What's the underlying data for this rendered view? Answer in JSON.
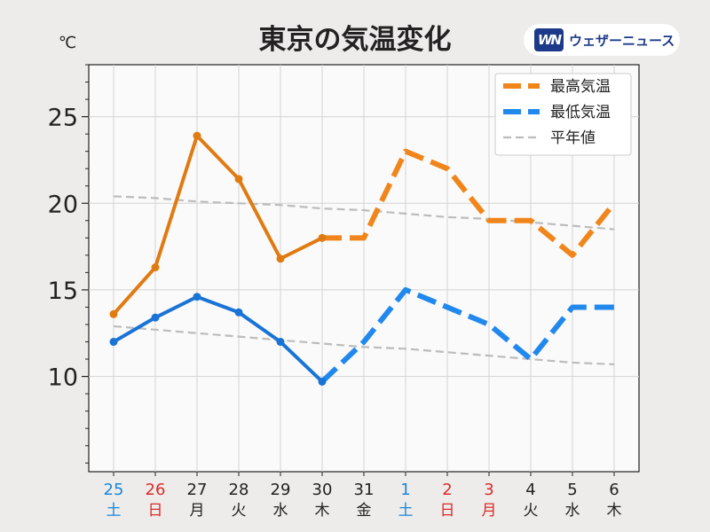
{
  "chart_data": {
    "type": "line",
    "title": "東京の気温変化",
    "unit_label": "℃",
    "y_ticks": [
      10,
      15,
      20,
      25
    ],
    "ylim": [
      4.5,
      28
    ],
    "grid": true,
    "legend_position": "top-right",
    "categories": [
      {
        "day": "25",
        "weekday": "土",
        "color": "#1a86d9"
      },
      {
        "day": "26",
        "weekday": "日",
        "color": "#d92b2b"
      },
      {
        "day": "27",
        "weekday": "月",
        "color": "#222222"
      },
      {
        "day": "28",
        "weekday": "火",
        "color": "#222222"
      },
      {
        "day": "29",
        "weekday": "水",
        "color": "#222222"
      },
      {
        "day": "30",
        "weekday": "木",
        "color": "#222222"
      },
      {
        "day": "31",
        "weekday": "金",
        "color": "#222222"
      },
      {
        "day": "1",
        "weekday": "土",
        "color": "#1a86d9"
      },
      {
        "day": "2",
        "weekday": "日",
        "color": "#d92b2b"
      },
      {
        "day": "3",
        "weekday": "月",
        "color": "#d92b2b"
      },
      {
        "day": "4",
        "weekday": "火",
        "color": "#222222"
      },
      {
        "day": "5",
        "weekday": "水",
        "color": "#222222"
      },
      {
        "day": "6",
        "weekday": "木",
        "color": "#222222"
      }
    ],
    "observed_count": 6,
    "series": [
      {
        "name": "最高気温",
        "color_observed": "#e07b12",
        "color_forecast": "#f0861b",
        "values": [
          13.6,
          16.3,
          23.9,
          21.4,
          16.8,
          18.0,
          18.0,
          23.0,
          22.0,
          19.0,
          19.0,
          17.0,
          20.0
        ]
      },
      {
        "name": "最低気温",
        "color_observed": "#1a74d6",
        "color_forecast": "#2188ee",
        "values": [
          12.0,
          13.4,
          14.6,
          13.7,
          12.0,
          9.7,
          12.0,
          15.0,
          14.0,
          13.0,
          11.0,
          14.0,
          14.0
        ]
      },
      {
        "name": "平年値",
        "color": "#bcbcbc",
        "normal_high": [
          20.4,
          20.3,
          20.1,
          20.0,
          19.9,
          19.7,
          19.6,
          19.4,
          19.2,
          19.1,
          18.9,
          18.7,
          18.5
        ],
        "normal_low": [
          12.9,
          12.7,
          12.5,
          12.3,
          12.1,
          11.9,
          11.7,
          11.6,
          11.4,
          11.2,
          11.0,
          10.8,
          10.7
        ]
      }
    ]
  },
  "logo": {
    "mark": "WN",
    "text": "ウェザーニュース"
  }
}
